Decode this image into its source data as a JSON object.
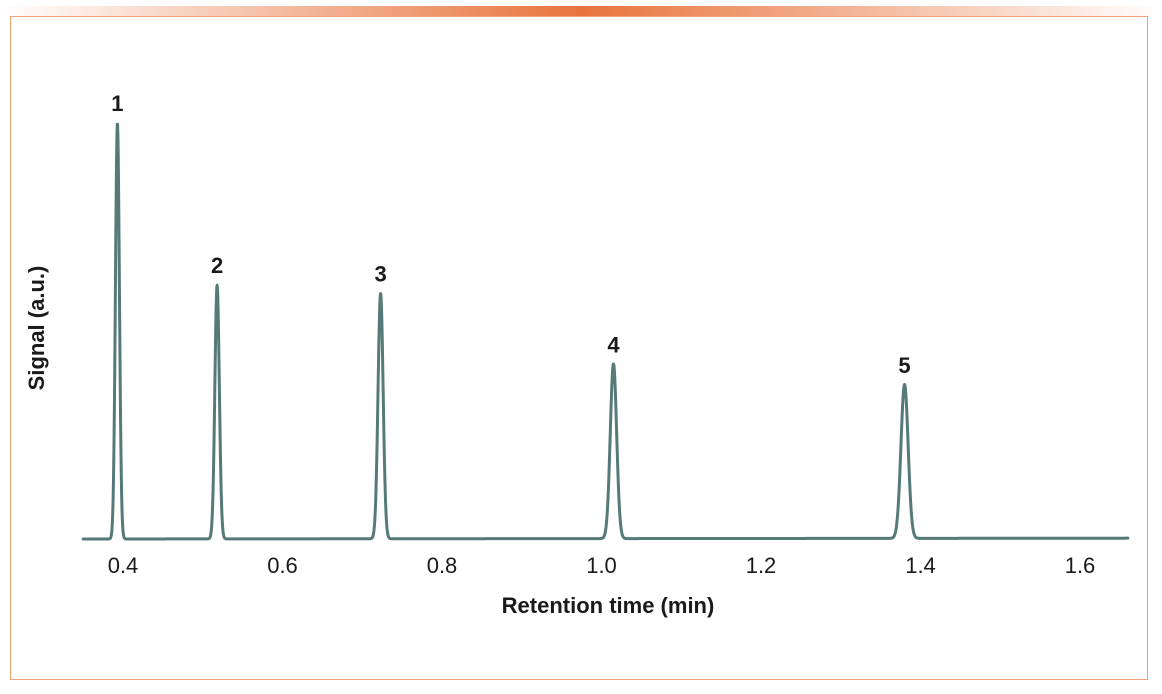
{
  "colors": {
    "trace": "#557a78",
    "frame_border": "#f0a074",
    "accent": "#e8743c",
    "text": "#1a1a1a"
  },
  "chart_data": {
    "type": "line",
    "title": "",
    "xlabel": "Retention time (min)",
    "ylabel": "Signal (a.u.)",
    "xlim": [
      0.35,
      1.66
    ],
    "ylim": [
      0,
      1.05
    ],
    "x_ticks": [
      0.4,
      0.6,
      0.8,
      1.0,
      1.2,
      1.4,
      1.6
    ],
    "x_tick_labels": [
      "0.4",
      "0.6",
      "0.8",
      "1.0",
      "1.2",
      "1.4",
      "1.6"
    ],
    "grid": false,
    "legend": "none",
    "peaks": [
      {
        "label": "1",
        "retention_time": 0.393,
        "height": 1.0,
        "width": 0.0025
      },
      {
        "label": "2",
        "retention_time": 0.518,
        "height": 0.61,
        "width": 0.0028
      },
      {
        "label": "3",
        "retention_time": 0.723,
        "height": 0.59,
        "width": 0.0032
      },
      {
        "label": "4",
        "retention_time": 1.015,
        "height": 0.42,
        "width": 0.004
      },
      {
        "label": "5",
        "retention_time": 1.38,
        "height": 0.37,
        "width": 0.0045
      }
    ]
  }
}
